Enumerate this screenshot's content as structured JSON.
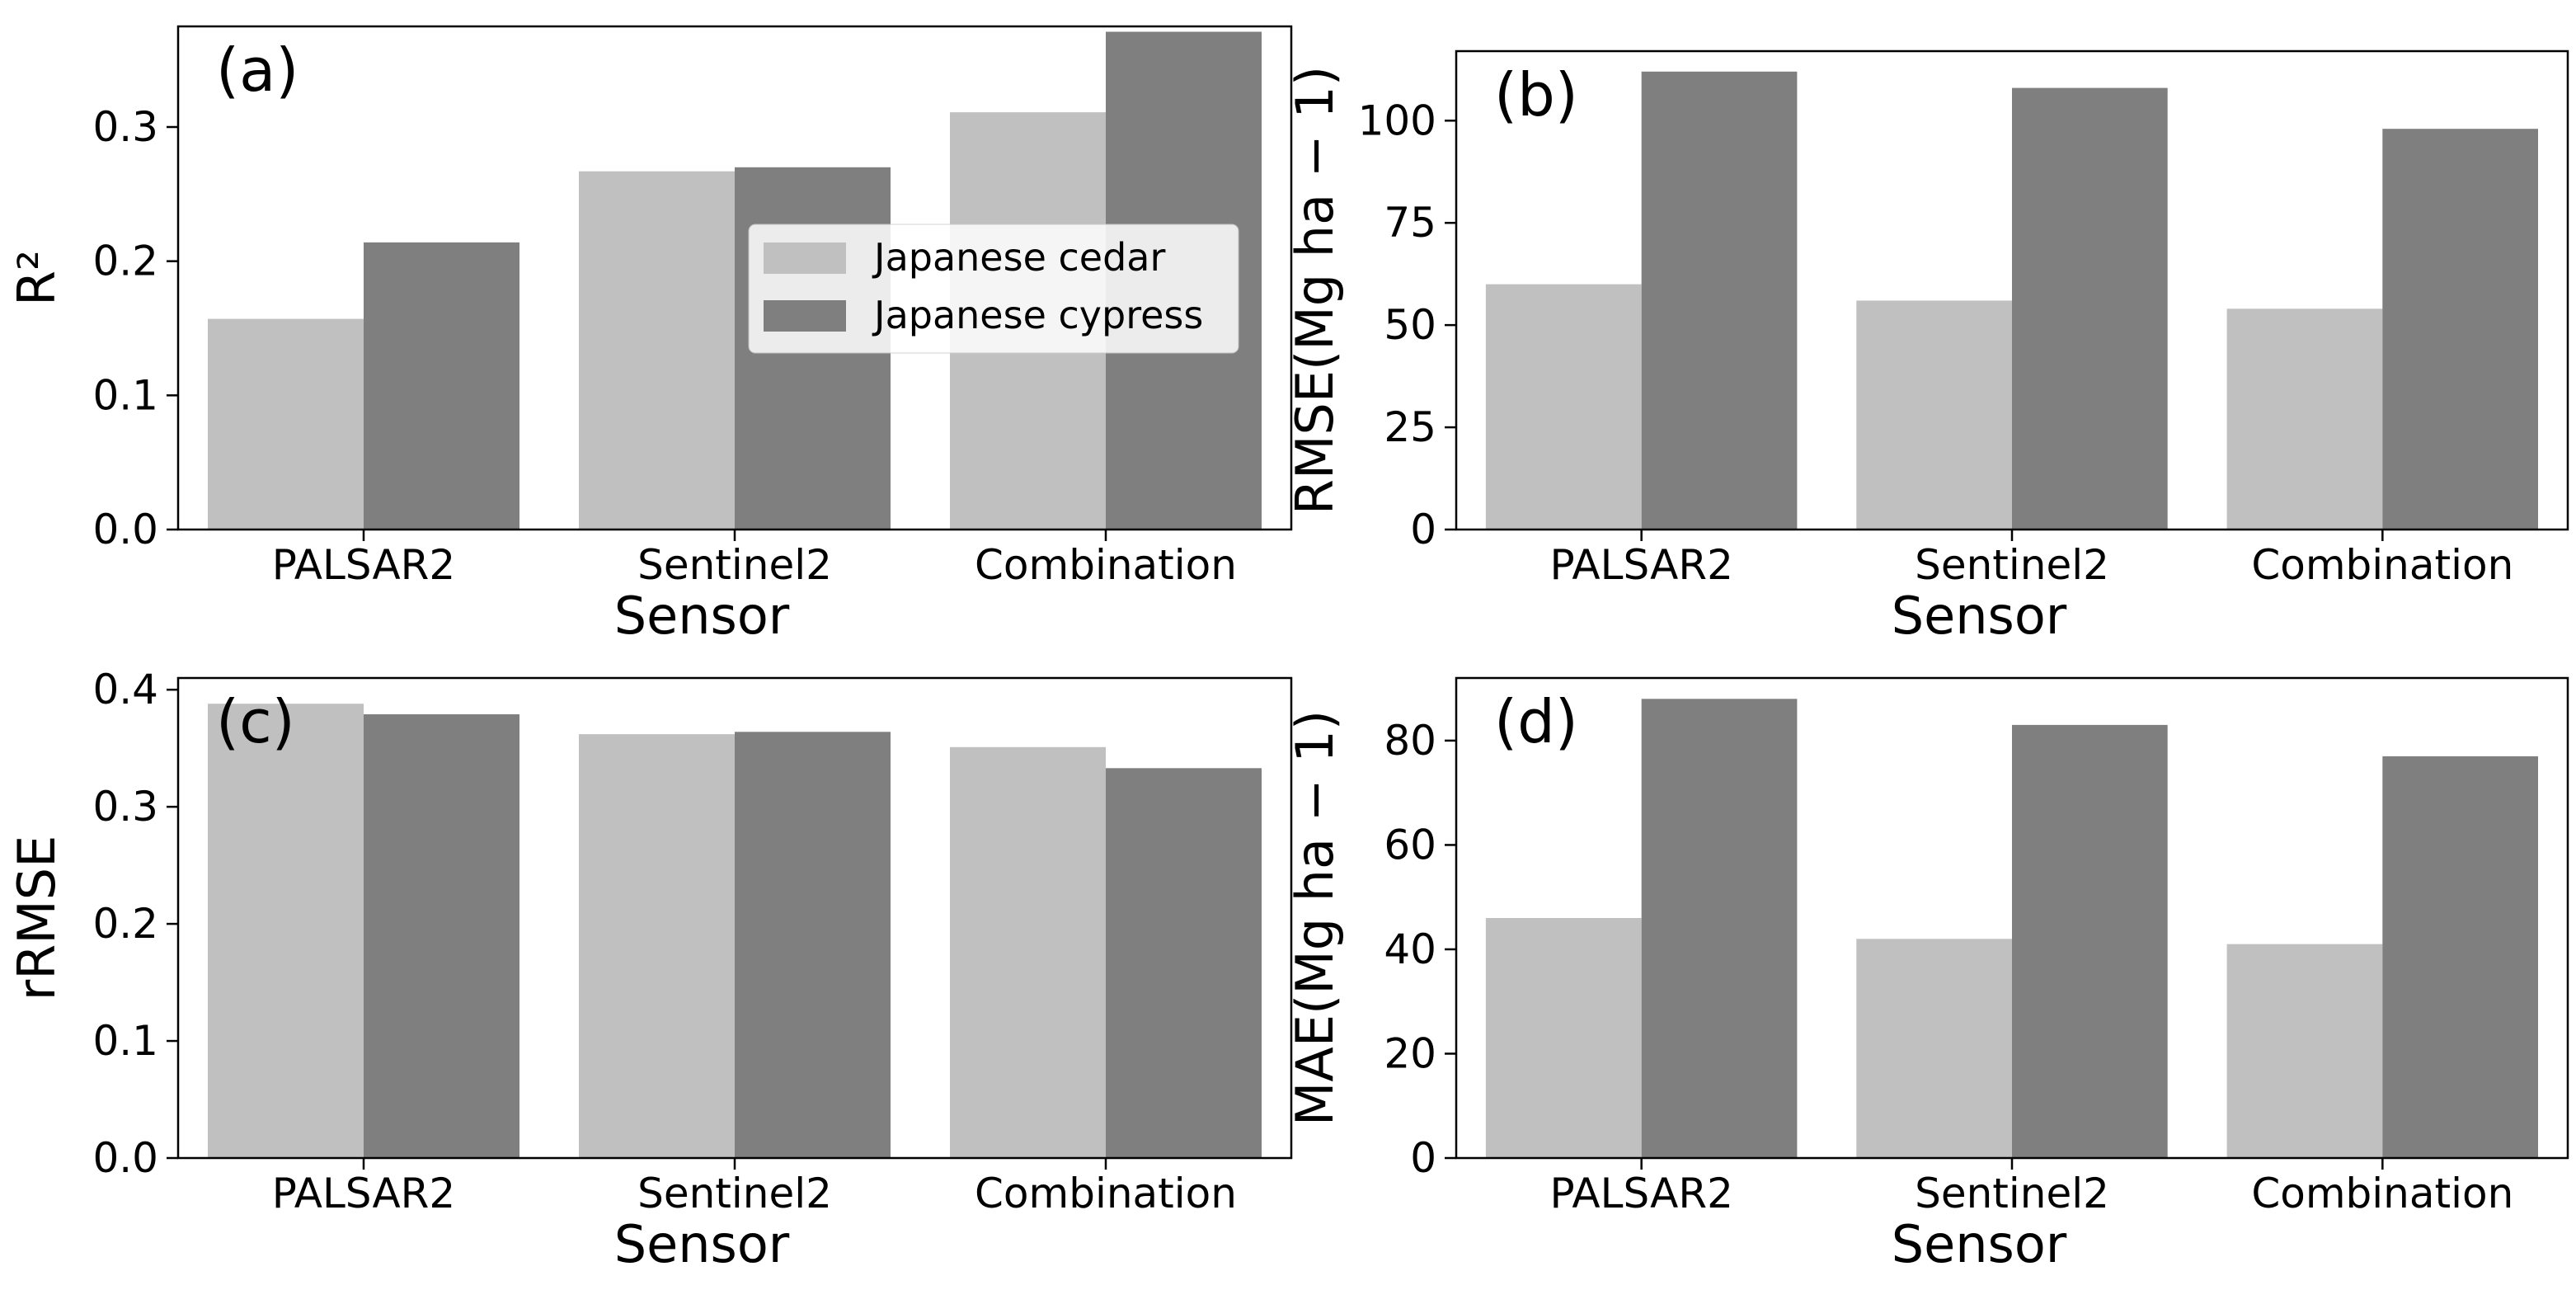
{
  "colors": {
    "cedar": "#c0c0c0",
    "cypress": "#7f7f7f",
    "axis": "#000000",
    "legend_bg": "#ffffff",
    "legend_edge": "#cccccc"
  },
  "legend": {
    "entries": [
      "Japanese cedar",
      "Japanese cypress"
    ]
  },
  "chart_data": [
    {
      "panel": "(a)",
      "type": "bar",
      "categories": [
        "PALSAR2",
        "Sentinel2",
        "Combination"
      ],
      "series": [
        {
          "name": "Japanese cedar",
          "values": [
            0.157,
            0.267,
            0.311
          ]
        },
        {
          "name": "Japanese cypress",
          "values": [
            0.214,
            0.27,
            0.371
          ]
        }
      ],
      "xlabel": "Sensor",
      "ylabel": "R²",
      "ylim": [
        0,
        0.375
      ],
      "yticks": [
        0.0,
        0.1,
        0.2,
        0.3
      ],
      "ytick_labels": [
        "0.0",
        "0.1",
        "0.2",
        "0.3"
      ],
      "legend_location": "center"
    },
    {
      "panel": "(b)",
      "type": "bar",
      "categories": [
        "PALSAR2",
        "Sentinel2",
        "Combination"
      ],
      "series": [
        {
          "name": "Japanese cedar",
          "values": [
            60,
            56,
            54
          ]
        },
        {
          "name": "Japanese cypress",
          "values": [
            112,
            108,
            98
          ]
        }
      ],
      "xlabel": "Sensor",
      "ylabel": "RMSE(Mg ha − 1)",
      "ylim": [
        0,
        117
      ],
      "yticks": [
        0,
        25,
        50,
        75,
        100
      ],
      "ytick_labels": [
        "0",
        "25",
        "50",
        "75",
        "100"
      ]
    },
    {
      "panel": "(c)",
      "type": "bar",
      "categories": [
        "PALSAR2",
        "Sentinel2",
        "Combination"
      ],
      "series": [
        {
          "name": "Japanese cedar",
          "values": [
            0.388,
            0.362,
            0.351
          ]
        },
        {
          "name": "Japanese cypress",
          "values": [
            0.379,
            0.364,
            0.333
          ]
        }
      ],
      "xlabel": "Sensor",
      "ylabel": "rRMSE",
      "ylim": [
        0,
        0.41
      ],
      "yticks": [
        0.0,
        0.1,
        0.2,
        0.3,
        0.4
      ],
      "ytick_labels": [
        "0.0",
        "0.1",
        "0.2",
        "0.3",
        "0.4"
      ]
    },
    {
      "panel": "(d)",
      "type": "bar",
      "categories": [
        "PALSAR2",
        "Sentinel2",
        "Combination"
      ],
      "series": [
        {
          "name": "Japanese cedar",
          "values": [
            46,
            42,
            41
          ]
        },
        {
          "name": "Japanese cypress",
          "values": [
            88,
            83,
            77
          ]
        }
      ],
      "xlabel": "Sensor",
      "ylabel": "MAE(Mg ha − 1)",
      "ylim": [
        0,
        92
      ],
      "yticks": [
        0,
        20,
        40,
        60,
        80
      ],
      "ytick_labels": [
        "0",
        "20",
        "40",
        "60",
        "80"
      ]
    }
  ]
}
